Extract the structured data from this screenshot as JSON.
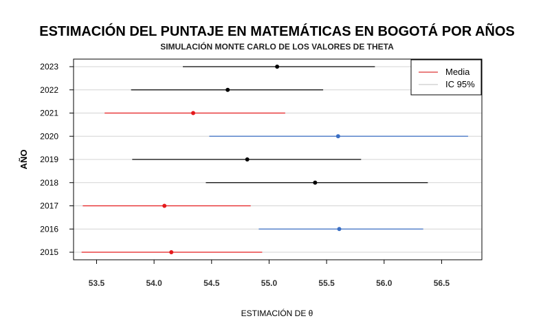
{
  "chart_data": {
    "type": "scatter",
    "title": "ESTIMACIÓN DEL PUNTAJE EN MATEMÁTICAS EN BOGOTÁ POR AÑOS",
    "subtitle": "SIMULACIÓN MONTE CARLO DE LOS VALORES DE THETA",
    "xlabel": "ESTIMACIÓN DE θ",
    "ylabel": "AÑO",
    "xlim": [
      53.3,
      56.85
    ],
    "x_ticks": [
      "53.5",
      "54.0",
      "54.5",
      "55.0",
      "55.5",
      "56.0",
      "56.5"
    ],
    "x_tick_values": [
      53.5,
      54.0,
      54.5,
      55.0,
      55.5,
      56.0,
      56.5
    ],
    "categories": [
      "2015",
      "2016",
      "2017",
      "2018",
      "2019",
      "2020",
      "2021",
      "2022",
      "2023"
    ],
    "grid": "horizontal",
    "legend_position": "top-right",
    "legend": [
      {
        "label": "Media",
        "color": "#d40000"
      },
      {
        "label": "IC 95%",
        "color": "#bfbfbf"
      }
    ],
    "points": [
      {
        "year": "2015",
        "mean": 54.15,
        "lower": 53.37,
        "upper": 54.94,
        "color": "#e41a1c"
      },
      {
        "year": "2016",
        "mean": 55.61,
        "lower": 54.91,
        "upper": 56.34,
        "color": "#3a6fc4"
      },
      {
        "year": "2017",
        "mean": 54.09,
        "lower": 53.38,
        "upper": 54.84,
        "color": "#e41a1c"
      },
      {
        "year": "2018",
        "mean": 55.4,
        "lower": 54.45,
        "upper": 56.38,
        "color": "#000000"
      },
      {
        "year": "2019",
        "mean": 54.81,
        "lower": 53.81,
        "upper": 55.8,
        "color": "#000000"
      },
      {
        "year": "2020",
        "mean": 55.6,
        "lower": 54.48,
        "upper": 56.73,
        "color": "#3a6fc4"
      },
      {
        "year": "2021",
        "mean": 54.34,
        "lower": 53.57,
        "upper": 55.14,
        "color": "#e41a1c"
      },
      {
        "year": "2022",
        "mean": 54.64,
        "lower": 53.8,
        "upper": 55.47,
        "color": "#000000"
      },
      {
        "year": "2023",
        "mean": 55.07,
        "lower": 54.25,
        "upper": 55.92,
        "color": "#000000"
      }
    ]
  }
}
